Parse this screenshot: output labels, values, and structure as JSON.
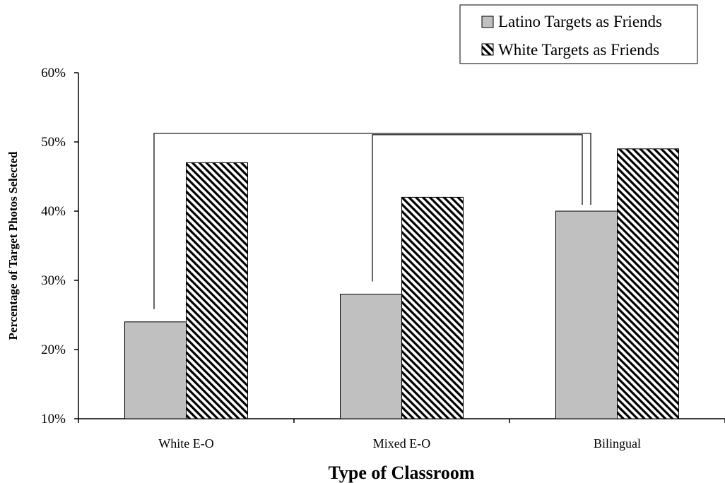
{
  "chart_data": {
    "type": "bar",
    "title": "",
    "xlabel": "Type of Classroom",
    "ylabel": "Percentage of Target Photos Selected",
    "categories": [
      "White E-O",
      "Mixed E-O",
      "Bilingual"
    ],
    "series": [
      {
        "name": "Latino Targets as Friends",
        "values": [
          24,
          28,
          40
        ],
        "fill": "#c0c0c0",
        "pattern": "solid"
      },
      {
        "name": "White Targets as Friends",
        "values": [
          47,
          42,
          49
        ],
        "fill": "#ffffff",
        "pattern": "diagonal-hatch"
      }
    ],
    "ylim": [
      10,
      60
    ],
    "yticks": [
      10,
      20,
      30,
      40,
      50,
      60
    ],
    "ytick_labels": [
      "10%",
      "20%",
      "30%",
      "40%",
      "50%",
      "60%"
    ],
    "grid": false,
    "legend_position": "top-right",
    "comparison_brackets": [
      {
        "from_category": "White E-O",
        "to_category": "Bilingual",
        "series": "Latino Targets as Friends"
      },
      {
        "from_category": "Mixed E-O",
        "to_category": "Bilingual",
        "series": "Latino Targets as Friends"
      }
    ]
  }
}
